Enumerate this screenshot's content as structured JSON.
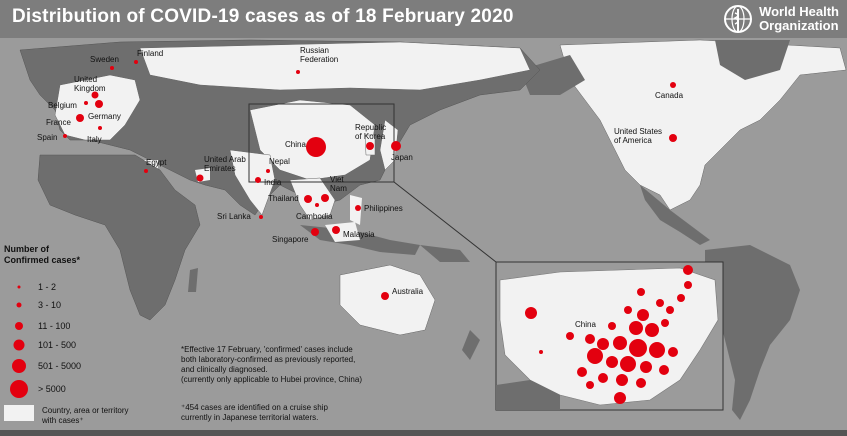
{
  "header": {
    "title": "Distribution of COVID-19 cases as of 18 February 2020",
    "org_line1": "World Health",
    "org_line2": "Organization"
  },
  "countries": [
    {
      "name_l1": "Finland",
      "name_l2": ""
    },
    {
      "name_l1": "Sweden",
      "name_l2": ""
    },
    {
      "name_l1": "United",
      "name_l2": "Kingdom"
    },
    {
      "name_l1": "Belgium",
      "name_l2": ""
    },
    {
      "name_l1": "Germany",
      "name_l2": ""
    },
    {
      "name_l1": "France",
      "name_l2": ""
    },
    {
      "name_l1": "Spain",
      "name_l2": ""
    },
    {
      "name_l1": "Italy",
      "name_l2": ""
    },
    {
      "name_l1": "Egypt",
      "name_l2": ""
    },
    {
      "name_l1": "United Arab",
      "name_l2": "Emirates"
    },
    {
      "name_l1": "Russian",
      "name_l2": "Federation"
    },
    {
      "name_l1": "Nepal",
      "name_l2": ""
    },
    {
      "name_l1": "India",
      "name_l2": ""
    },
    {
      "name_l1": "Sri Lanka",
      "name_l2": ""
    },
    {
      "name_l1": "China",
      "name_l2": ""
    },
    {
      "name_l1": "Republic",
      "name_l2": "of Korea"
    },
    {
      "name_l1": "Japan",
      "name_l2": ""
    },
    {
      "name_l1": "Viet",
      "name_l2": "Nam"
    },
    {
      "name_l1": "Thailand",
      "name_l2": ""
    },
    {
      "name_l1": "Cambodia",
      "name_l2": ""
    },
    {
      "name_l1": "Philippines",
      "name_l2": ""
    },
    {
      "name_l1": "Singapore",
      "name_l2": ""
    },
    {
      "name_l1": "Malaysia",
      "name_l2": ""
    },
    {
      "name_l1": "Australia",
      "name_l2": ""
    },
    {
      "name_l1": "Canada",
      "name_l2": ""
    },
    {
      "name_l1": "United States",
      "name_l2": "of America"
    }
  ],
  "inset": {
    "china_label": "China"
  },
  "legend": {
    "title_l1": "Number of",
    "title_l2": "Confirmed cases*",
    "items": [
      {
        "label": "1 - 2"
      },
      {
        "label": "3 - 10"
      },
      {
        "label": "11 - 100"
      },
      {
        "label": "101 - 500"
      },
      {
        "label": "501 - 5000"
      },
      {
        "label": "> 5000"
      }
    ],
    "territory_l1": "Country, area or territory",
    "territory_l2": "with cases⁺"
  },
  "notes": {
    "n1_l1": "*Effective 17 February, 'confirmed' cases include",
    "n1_l2": "both laboratory-confirmed as previously reported,",
    "n1_l3": "and clinically diagnosed.",
    "n1_l4": "(currently only applicable to Hubei province, China)",
    "n2_l1": "⁺454 cases are identified on a cruise ship",
    "n2_l2": "currently in Japanese territorial waters."
  },
  "colors": {
    "ocean": "#9b9b9b",
    "land": "#6e6e6e",
    "affected": "#f2f2f2",
    "dot": "#e3000f",
    "header": "#7d7d7d"
  }
}
